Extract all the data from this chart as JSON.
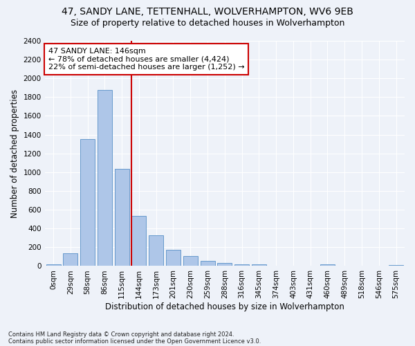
{
  "title": "47, SANDY LANE, TETTENHALL, WOLVERHAMPTON, WV6 9EB",
  "subtitle": "Size of property relative to detached houses in Wolverhampton",
  "xlabel": "Distribution of detached houses by size in Wolverhampton",
  "ylabel": "Number of detached properties",
  "categories": [
    "0sqm",
    "29sqm",
    "58sqm",
    "86sqm",
    "115sqm",
    "144sqm",
    "173sqm",
    "201sqm",
    "230sqm",
    "259sqm",
    "288sqm",
    "316sqm",
    "345sqm",
    "374sqm",
    "403sqm",
    "431sqm",
    "460sqm",
    "489sqm",
    "518sqm",
    "546sqm",
    "575sqm"
  ],
  "values": [
    15,
    135,
    1350,
    1880,
    1035,
    535,
    330,
    170,
    110,
    55,
    35,
    20,
    15,
    5,
    5,
    0,
    15,
    0,
    0,
    0,
    10
  ],
  "bar_color": "#aec6e8",
  "bar_edge_color": "#6699cc",
  "vline_x_index": 5,
  "vline_color": "#cc0000",
  "annotation_line1": "47 SANDY LANE: 146sqm",
  "annotation_line2": "← 78% of detached houses are smaller (4,424)",
  "annotation_line3": "22% of semi-detached houses are larger (1,252) →",
  "annotation_box_color": "#ffffff",
  "annotation_box_edge_color": "#cc0000",
  "ylim": [
    0,
    2400
  ],
  "yticks": [
    0,
    200,
    400,
    600,
    800,
    1000,
    1200,
    1400,
    1600,
    1800,
    2000,
    2200,
    2400
  ],
  "footnote1": "Contains HM Land Registry data © Crown copyright and database right 2024.",
  "footnote2": "Contains public sector information licensed under the Open Government Licence v3.0.",
  "background_color": "#eef2f9",
  "title_fontsize": 10,
  "subtitle_fontsize": 9,
  "axis_label_fontsize": 8.5,
  "tick_fontsize": 7.5,
  "annotation_fontsize": 8
}
